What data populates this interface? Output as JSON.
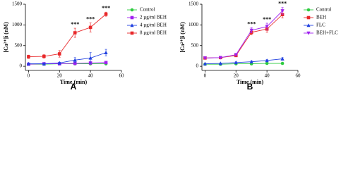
{
  "chart_data": [
    {
      "type": "line",
      "panel_label": "A",
      "x_label": "Time (min)",
      "y_label": "[Ca²⁺]i (nM)",
      "x": [
        0,
        10,
        20,
        30,
        40,
        50
      ],
      "xlim": [
        -2,
        60
      ],
      "xticks": [
        0,
        20,
        40,
        60
      ],
      "ylim": [
        -100,
        1500
      ],
      "yticks": [
        0,
        500,
        1000,
        1500
      ],
      "legend": "right",
      "series": [
        {
          "name": "Control",
          "color": "#2ecc40",
          "marker": "circle",
          "values": [
            50,
            50,
            60,
            60,
            60,
            60
          ],
          "errors": [
            10,
            10,
            10,
            10,
            10,
            10
          ]
        },
        {
          "name": "2 µg/ml BEH",
          "color": "#a020f0",
          "marker": "square",
          "values": [
            50,
            60,
            60,
            70,
            80,
            90
          ],
          "errors": [
            10,
            10,
            10,
            20,
            20,
            20
          ]
        },
        {
          "name": "4 µg/ml BEH",
          "color": "#2040e0",
          "marker": "triangle",
          "values": [
            60,
            60,
            80,
            150,
            200,
            330
          ],
          "errors": [
            10,
            10,
            20,
            60,
            130,
            80
          ]
        },
        {
          "name": "8 µg/ml BEH",
          "color": "#e8282a",
          "marker": "square",
          "values": [
            230,
            240,
            300,
            810,
            940,
            1260
          ],
          "errors": [
            40,
            40,
            80,
            110,
            110,
            50
          ]
        }
      ],
      "annotations": [
        {
          "x": 30,
          "text": "***"
        },
        {
          "x": 40,
          "text": "***"
        },
        {
          "x": 50,
          "text": "***"
        }
      ]
    },
    {
      "type": "line",
      "panel_label": "B",
      "x_label": "Time (min)",
      "y_label": "[Ca²⁺]i (nM)",
      "x": [
        0,
        10,
        20,
        30,
        40,
        50
      ],
      "xlim": [
        -2,
        60
      ],
      "xticks": [
        0,
        20,
        40,
        60
      ],
      "ylim": [
        -100,
        1500
      ],
      "yticks": [
        0,
        500,
        1000,
        1500
      ],
      "legend": "right",
      "series": [
        {
          "name": "Control",
          "color": "#2ecc40",
          "marker": "circle",
          "values": [
            50,
            50,
            60,
            60,
            70,
            70
          ],
          "errors": [
            10,
            10,
            10,
            10,
            10,
            10
          ]
        },
        {
          "name": "BEH",
          "color": "#e8282a",
          "marker": "square",
          "values": [
            200,
            210,
            260,
            820,
            900,
            1250
          ],
          "errors": [
            20,
            20,
            30,
            60,
            80,
            80
          ]
        },
        {
          "name": "FLC",
          "color": "#2040e0",
          "marker": "triangle",
          "values": [
            60,
            70,
            90,
            110,
            140,
            180
          ],
          "errors": [
            10,
            10,
            20,
            20,
            20,
            30
          ]
        },
        {
          "name": "BEH+FLC",
          "color": "#a020f0",
          "marker": "triangle-down",
          "values": [
            200,
            210,
            280,
            870,
            960,
            1340
          ],
          "errors": [
            20,
            20,
            30,
            60,
            80,
            80
          ]
        }
      ],
      "annotations": [
        {
          "x": 30,
          "text": "***"
        },
        {
          "x": 40,
          "text": "***"
        },
        {
          "x": 50,
          "text": "***"
        }
      ]
    }
  ]
}
